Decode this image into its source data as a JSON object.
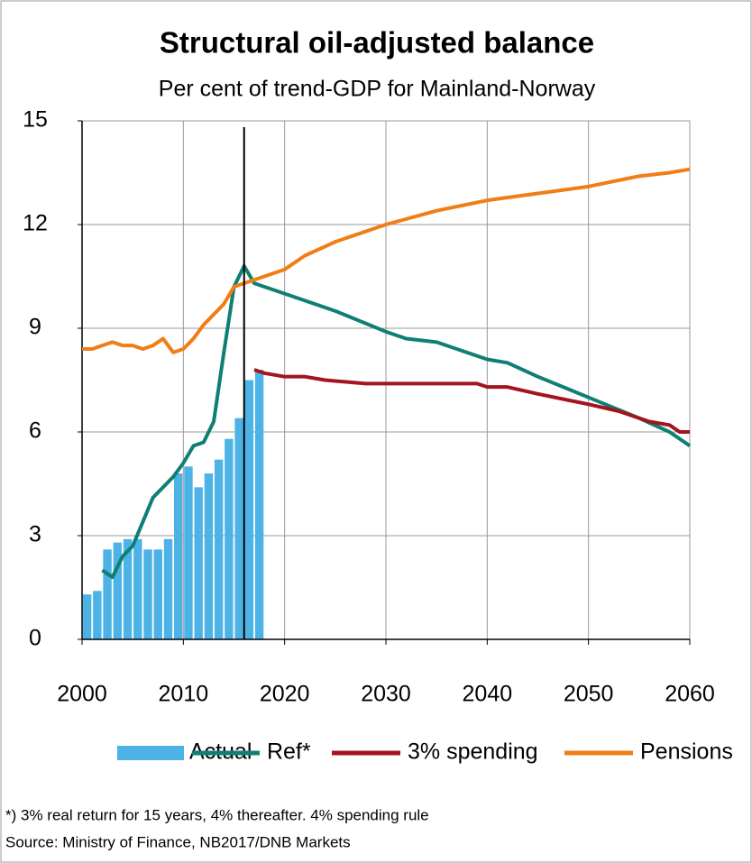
{
  "chart_data": {
    "type": "combo",
    "title": "Structural oil-adjusted balance",
    "subtitle": "Per cent of trend-GDP for Mainland-Norway",
    "xlim": [
      2000,
      2060
    ],
    "xticks": [
      2000,
      2010,
      2020,
      2030,
      2040,
      2050,
      2060
    ],
    "ylim": [
      0,
      15
    ],
    "yticks": [
      0,
      3,
      6,
      9,
      12,
      15
    ],
    "grid": true,
    "vertical_line": 2016,
    "series": [
      {
        "name": "Actual",
        "type": "bar",
        "color": "#4db3e6",
        "x": [
          2000,
          2001,
          2002,
          2003,
          2004,
          2005,
          2006,
          2007,
          2008,
          2009,
          2010,
          2011,
          2012,
          2013,
          2014,
          2015,
          2016,
          2017
        ],
        "values": [
          1.3,
          1.4,
          2.6,
          2.8,
          2.9,
          2.9,
          2.6,
          2.6,
          2.9,
          4.8,
          5.0,
          4.4,
          4.8,
          5.2,
          5.8,
          6.4,
          7.5,
          7.8
        ]
      },
      {
        "name": "Ref*",
        "type": "line",
        "color": "#0f7f74",
        "x": [
          2002,
          2003,
          2004,
          2005,
          2006,
          2007,
          2008,
          2009,
          2010,
          2011,
          2012,
          2013,
          2014,
          2015,
          2016,
          2017,
          2018,
          2020,
          2025,
          2030,
          2032,
          2035,
          2040,
          2042,
          2045,
          2050,
          2055,
          2058,
          2060
        ],
        "values": [
          2.0,
          1.8,
          2.4,
          2.7,
          3.4,
          4.1,
          4.4,
          4.7,
          5.1,
          5.6,
          5.7,
          6.3,
          8.3,
          10.2,
          10.8,
          10.3,
          10.2,
          10.0,
          9.5,
          8.9,
          8.7,
          8.6,
          8.1,
          8.0,
          7.6,
          7.0,
          6.4,
          6.0,
          5.6
        ]
      },
      {
        "name": "3% spending",
        "type": "line",
        "color": "#a3141e",
        "x": [
          2017,
          2018,
          2020,
          2022,
          2024,
          2028,
          2035,
          2039,
          2040,
          2042,
          2045,
          2050,
          2053,
          2056,
          2058,
          2059,
          2060
        ],
        "values": [
          7.8,
          7.7,
          7.6,
          7.6,
          7.5,
          7.4,
          7.4,
          7.4,
          7.3,
          7.3,
          7.1,
          6.8,
          6.6,
          6.3,
          6.2,
          6.0,
          6.0
        ]
      },
      {
        "name": "Pensions",
        "type": "line",
        "color": "#f07d16",
        "x": [
          2000,
          2001,
          2002,
          2003,
          2004,
          2005,
          2006,
          2007,
          2008,
          2009,
          2010,
          2011,
          2012,
          2013,
          2014,
          2015,
          2016,
          2018,
          2020,
          2022,
          2025,
          2030,
          2035,
          2040,
          2045,
          2050,
          2055,
          2058,
          2060
        ],
        "values": [
          8.4,
          8.4,
          8.5,
          8.6,
          8.5,
          8.5,
          8.4,
          8.5,
          8.7,
          8.3,
          8.4,
          8.7,
          9.1,
          9.4,
          9.7,
          10.2,
          10.3,
          10.5,
          10.7,
          11.1,
          11.5,
          12.0,
          12.4,
          12.7,
          12.9,
          13.1,
          13.4,
          13.5,
          13.6
        ]
      }
    ],
    "notes": [
      "*) 3% real return for 15 years, 4% thereafter.  4% spending  rule",
      "Source:  Ministry of Finance,  NB2017/DNB  Markets"
    ]
  }
}
